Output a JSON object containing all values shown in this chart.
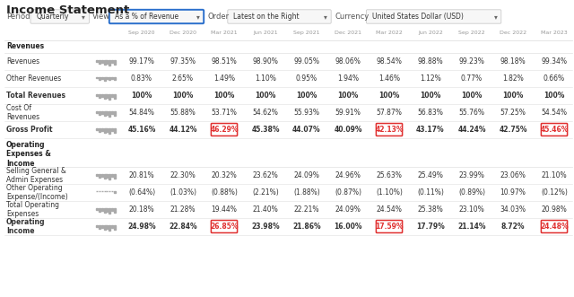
{
  "title": "Income Statement",
  "controls": [
    {
      "label": "Period",
      "value": "Quarterly",
      "highlighted": false
    },
    {
      "label": "View",
      "value": "As a % of Revenue",
      "highlighted": true
    },
    {
      "label": "Order",
      "value": "Latest on the Right",
      "highlighted": false
    },
    {
      "label": "Currency",
      "value": "United States Dollar (USD)",
      "highlighted": false
    }
  ],
  "columns": [
    "Sep 2020",
    "Dec 2020",
    "Mar 2021",
    "Jun 2021",
    "Sep 2021",
    "Dec 2021",
    "Mar 2022",
    "Jun 2022",
    "Sep 2022",
    "Dec 2022",
    "Mar 2023"
  ],
  "sections": [
    {
      "header": "Revenues",
      "rows": [
        {
          "label": "Revenues",
          "chart_type": "bars_tall",
          "values": [
            "99.17%",
            "97.35%",
            "98.51%",
            "98.90%",
            "99.05%",
            "98.06%",
            "98.54%",
            "98.88%",
            "99.23%",
            "98.18%",
            "99.34%"
          ],
          "bold": false,
          "highlighted": []
        },
        {
          "label": "Other Revenues",
          "chart_type": "bars_small",
          "values": [
            "0.83%",
            "2.65%",
            "1.49%",
            "1.10%",
            "0.95%",
            "1.94%",
            "1.46%",
            "1.12%",
            "0.77%",
            "1.82%",
            "0.66%"
          ],
          "bold": false,
          "highlighted": []
        },
        {
          "label": "Total Revenues",
          "chart_type": "bars_tall",
          "values": [
            "100%",
            "100%",
            "100%",
            "100%",
            "100%",
            "100%",
            "100%",
            "100%",
            "100%",
            "100%",
            "100%"
          ],
          "bold": true,
          "highlighted": []
        },
        {
          "label": "Cost Of\nRevenues",
          "chart_type": "bars_tall",
          "values": [
            "54.84%",
            "55.88%",
            "53.71%",
            "54.62%",
            "55.93%",
            "59.91%",
            "57.87%",
            "56.83%",
            "55.76%",
            "57.25%",
            "54.54%"
          ],
          "bold": false,
          "highlighted": []
        },
        {
          "label": "Gross Profit",
          "chart_type": "bars_tall",
          "values": [
            "45.16%",
            "44.12%",
            "46.29%",
            "45.38%",
            "44.07%",
            "40.09%",
            "42.13%",
            "43.17%",
            "44.24%",
            "42.75%",
            "45.46%"
          ],
          "bold": true,
          "highlighted": [
            2,
            6,
            10
          ]
        }
      ]
    },
    {
      "header": "Operating\nExpenses &\nIncome",
      "rows": [
        {
          "label": "Selling General &\nAdmin Expenses",
          "chart_type": "bars_tall",
          "values": [
            "20.81%",
            "22.30%",
            "20.32%",
            "23.62%",
            "24.09%",
            "24.96%",
            "25.63%",
            "25.49%",
            "23.99%",
            "23.06%",
            "21.10%"
          ],
          "bold": false,
          "highlighted": []
        },
        {
          "label": "Other Operating\nExpense/(Income)",
          "chart_type": "bars_flat",
          "values": [
            "(0.64%)",
            "(1.03%)",
            "(0.88%)",
            "(2.21%)",
            "(1.88%)",
            "(0.87%)",
            "(1.10%)",
            "(0.11%)",
            "(0.89%)",
            "10.97%",
            "(0.12%)"
          ],
          "bold": false,
          "highlighted": []
        },
        {
          "label": "Total Operating\nExpenses",
          "chart_type": "bars_tall",
          "values": [
            "20.18%",
            "21.28%",
            "19.44%",
            "21.40%",
            "22.21%",
            "24.09%",
            "24.54%",
            "25.38%",
            "23.10%",
            "34.03%",
            "20.98%"
          ],
          "bold": false,
          "highlighted": []
        },
        {
          "label": "Operating\nIncome",
          "chart_type": "bars_tall",
          "values": [
            "24.98%",
            "22.84%",
            "26.85%",
            "23.98%",
            "21.86%",
            "16.00%",
            "17.59%",
            "17.79%",
            "21.14%",
            "8.72%",
            "24.48%"
          ],
          "bold": true,
          "highlighted": [
            2,
            6,
            10
          ]
        }
      ]
    }
  ],
  "bg_color": "#ffffff",
  "text_color": "#333333",
  "highlight_border": "#e03030",
  "highlight_text": "#e03030",
  "title_color": "#222222",
  "control_border": "#cccccc",
  "view_border": "#2a6fcc",
  "col_header_color": "#999999",
  "section_header_color": "#222222",
  "separator_color": "#e0e0e0",
  "chart_color": "#aaaaaa"
}
